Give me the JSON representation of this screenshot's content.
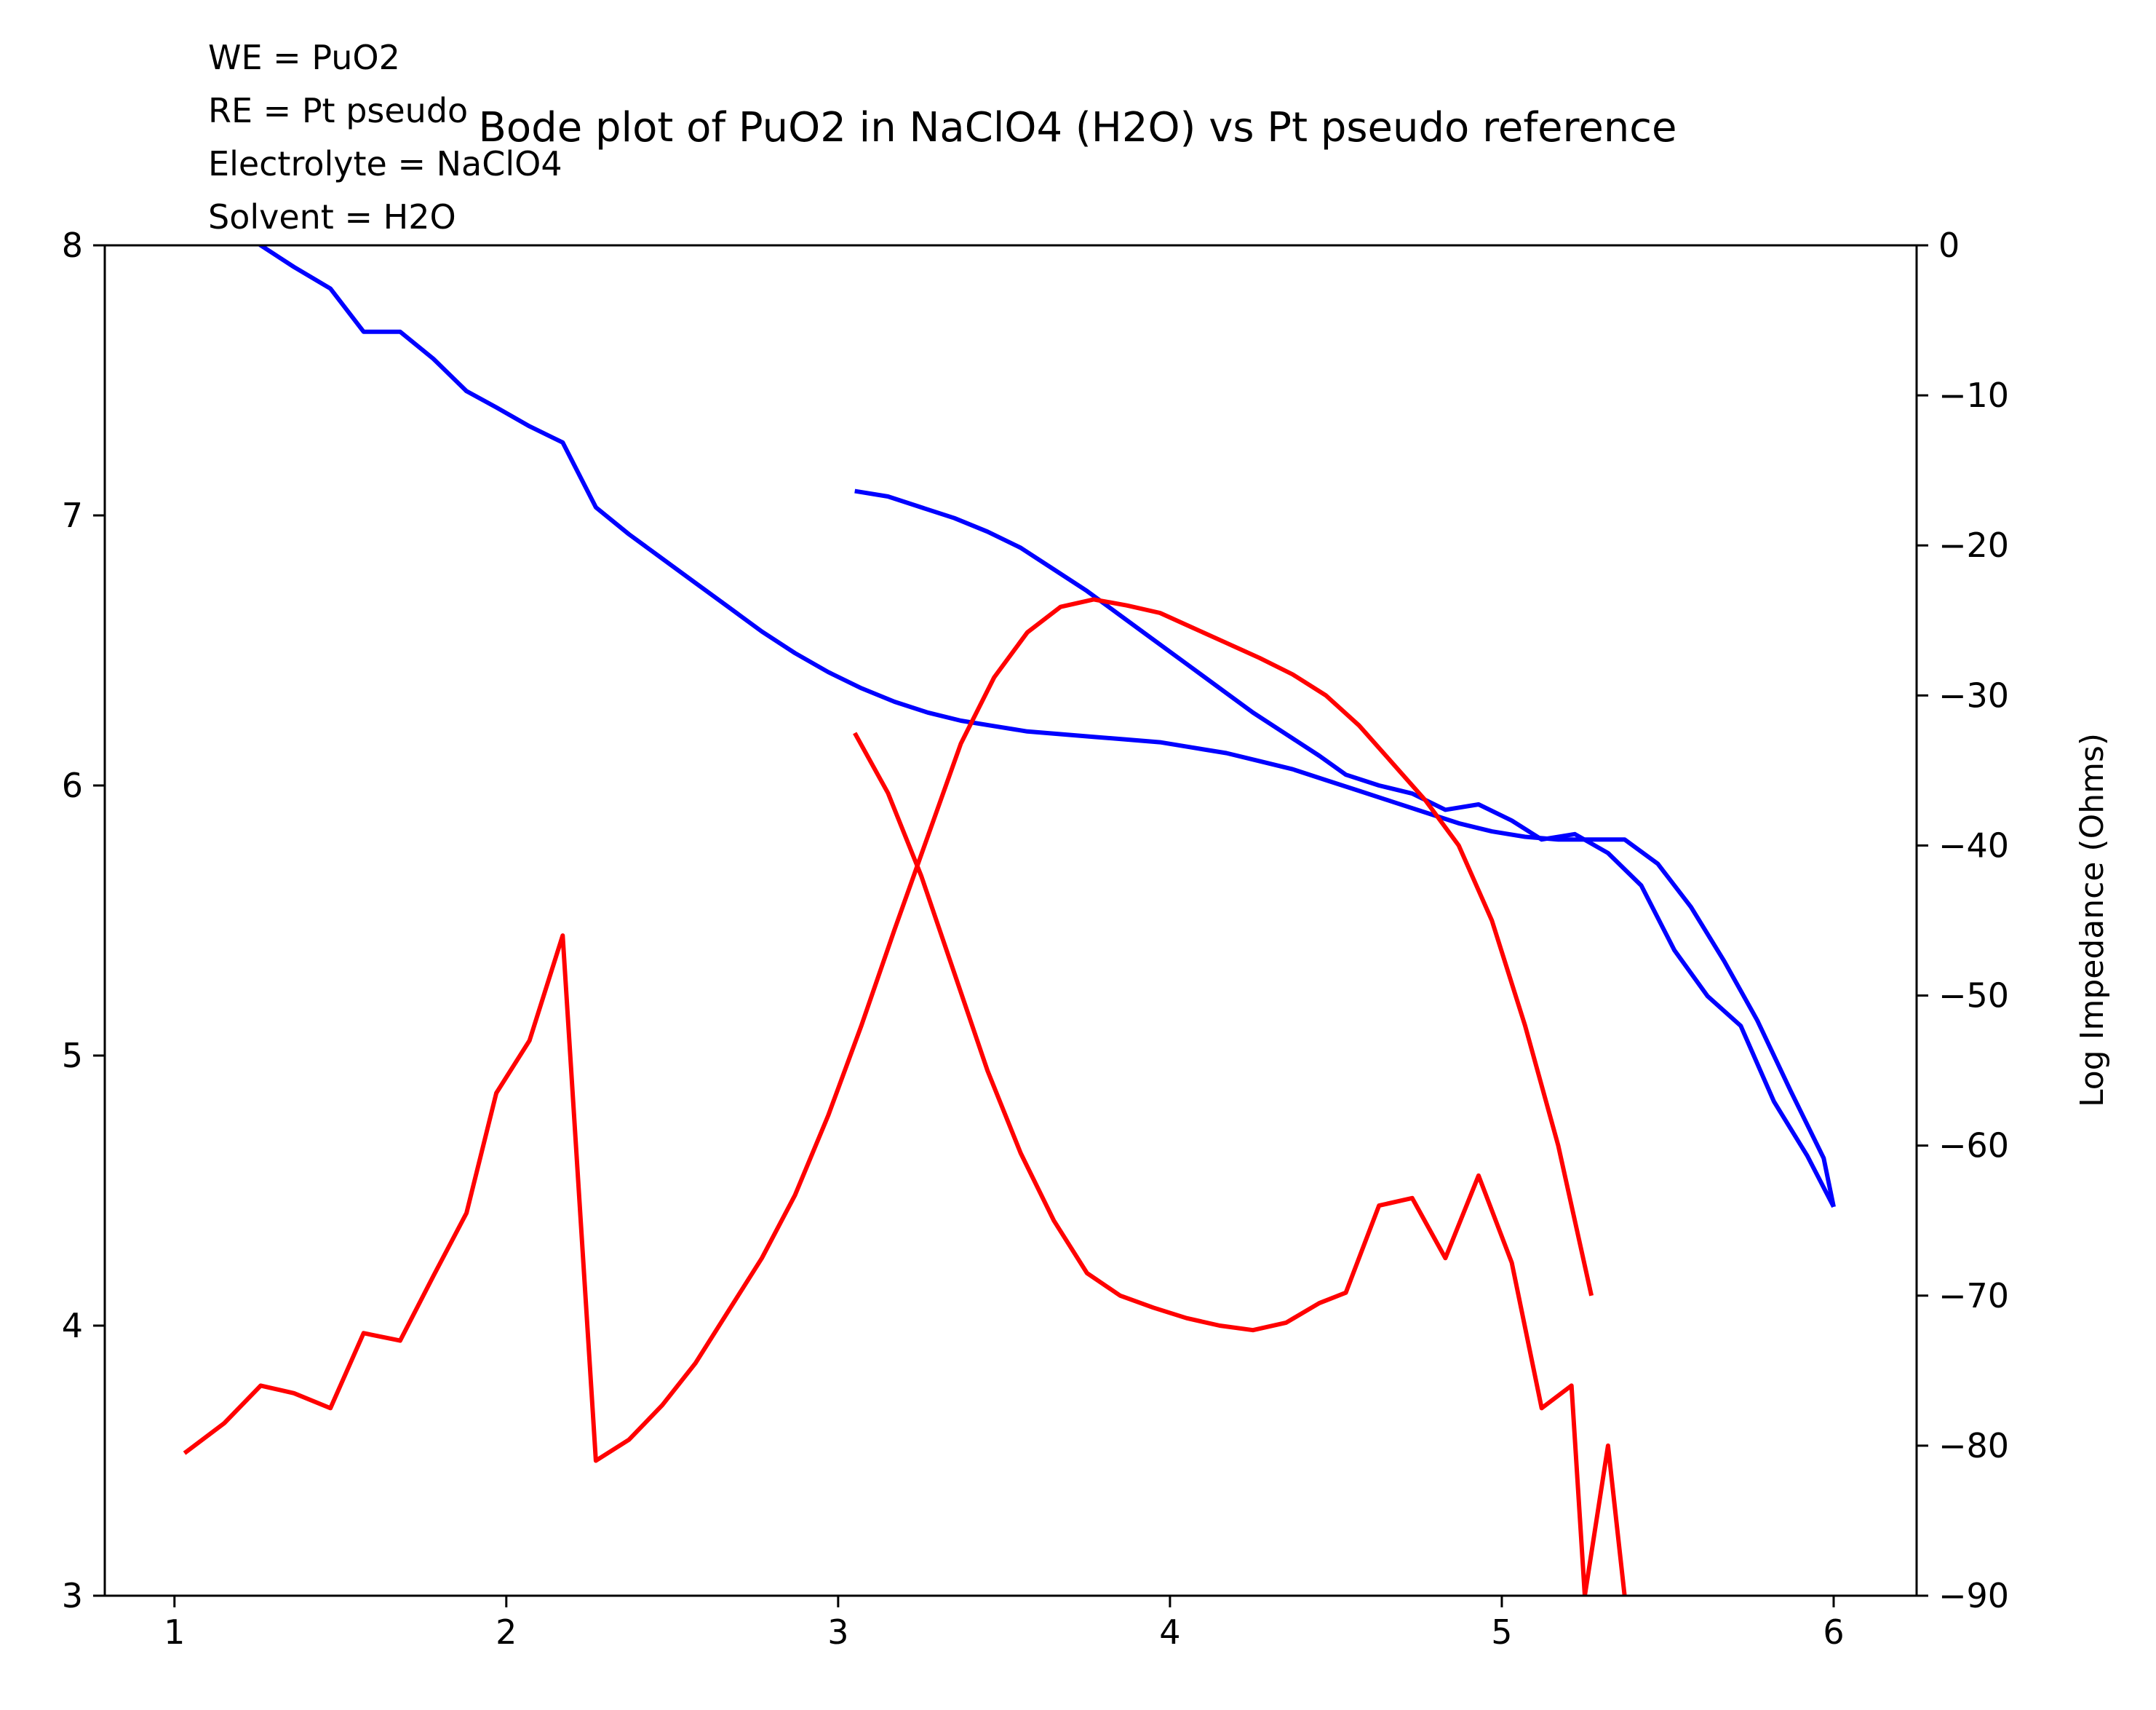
{
  "chart_data": {
    "type": "line",
    "title": "Bode plot of PuO2 in NaClO4 (H2O) vs Pt pseudo reference",
    "annotations": [
      "WE = PuO2",
      "RE = Pt pseudo",
      "Electrolyte = NaClO4",
      "Solvent = H2O"
    ],
    "xlabel": "",
    "ylabel_left": "",
    "ylabel_right": "Log Impedance (Ohms)",
    "xlim": [
      0.79,
      6.25
    ],
    "ylim_left": [
      3,
      8
    ],
    "ylim_right": [
      -90,
      0
    ],
    "xticks": [
      1,
      2,
      3,
      4,
      5,
      6
    ],
    "yticks_left": [
      3,
      4,
      5,
      6,
      7,
      8
    ],
    "yticks_right": [
      0,
      -10,
      -20,
      -30,
      -40,
      -50,
      -60,
      -70,
      -80,
      -90
    ],
    "grid": false,
    "series": [
      {
        "color": "#0000ff",
        "axis": "left",
        "x": [
          1.03,
          1.15,
          1.26,
          1.36,
          1.47,
          1.57,
          1.68,
          1.78,
          1.88,
          1.97,
          2.07,
          2.17,
          2.27,
          2.37,
          2.47,
          2.57,
          2.67,
          2.77,
          2.87,
          2.97,
          3.07,
          3.17,
          3.27,
          3.37,
          3.47,
          3.57,
          3.67,
          3.77,
          3.87,
          3.97,
          4.07,
          4.17,
          4.27,
          4.37,
          4.47,
          4.57,
          4.67,
          4.77,
          4.87,
          4.97,
          5.07,
          5.17,
          5.27,
          5.37,
          5.47,
          5.57,
          5.67,
          5.77,
          5.87,
          5.97,
          6.0
        ],
        "y": [
          8.22,
          8.11,
          8.0,
          7.92,
          7.84,
          7.68,
          7.68,
          7.58,
          7.46,
          7.4,
          7.33,
          7.27,
          7.03,
          6.93,
          6.84,
          6.75,
          6.66,
          6.57,
          6.49,
          6.42,
          6.36,
          6.31,
          6.27,
          6.24,
          6.22,
          6.2,
          6.19,
          6.18,
          6.17,
          6.16,
          6.14,
          6.12,
          6.09,
          6.06,
          6.02,
          5.98,
          5.94,
          5.9,
          5.86,
          5.83,
          5.81,
          5.8,
          5.8,
          5.8,
          5.71,
          5.55,
          5.35,
          5.13,
          4.87,
          4.62,
          4.44
        ]
      },
      {
        "color": "#0000ff",
        "axis": "left",
        "x": [
          3.05,
          3.15,
          3.25,
          3.35,
          3.45,
          3.55,
          3.65,
          3.75,
          3.85,
          3.95,
          4.05,
          4.15,
          4.25,
          4.35,
          4.45,
          4.53,
          4.63,
          4.73,
          4.83,
          4.93,
          5.03,
          5.12,
          5.22,
          5.32,
          5.42,
          5.52,
          5.62,
          5.72,
          5.82,
          5.92,
          6.0
        ],
        "y": [
          7.09,
          7.07,
          7.03,
          6.99,
          6.94,
          6.88,
          6.8,
          6.72,
          6.63,
          6.54,
          6.45,
          6.36,
          6.27,
          6.19,
          6.11,
          6.04,
          6.0,
          5.97,
          5.91,
          5.93,
          5.87,
          5.8,
          5.82,
          5.75,
          5.63,
          5.39,
          5.22,
          5.11,
          4.83,
          4.63,
          4.44
        ]
      },
      {
        "color": "#ff0000",
        "axis": "right",
        "x": [
          1.03,
          1.15,
          1.26,
          1.36,
          1.47,
          1.57,
          1.68,
          1.78,
          1.88,
          1.97,
          2.07,
          2.17,
          2.27,
          2.37,
          2.47,
          2.57,
          2.67,
          2.77,
          2.87,
          2.97,
          3.07,
          3.17,
          3.27,
          3.37,
          3.47,
          3.57,
          3.67,
          3.77,
          3.87,
          3.97,
          4.07,
          4.17,
          4.27,
          4.37,
          4.47,
          4.57,
          4.67,
          4.77,
          4.87,
          4.97,
          5.07,
          5.17,
          5.27
        ],
        "y": [
          -80.5,
          -78.5,
          -76.0,
          -76.5,
          -77.5,
          -72.5,
          -73.0,
          -68.7,
          -64.5,
          -56.5,
          -53.0,
          -46.0,
          -81.0,
          -79.6,
          -77.3,
          -74.5,
          -71.0,
          -67.5,
          -63.3,
          -58.0,
          -52.0,
          -45.6,
          -39.4,
          -33.2,
          -28.8,
          -25.8,
          -24.1,
          -23.6,
          -24.0,
          -24.5,
          -25.5,
          -26.5,
          -27.5,
          -28.6,
          -30.0,
          -32.0,
          -34.5,
          -37.0,
          -40.0,
          -45.0,
          -52.0,
          -60.0,
          -70.0
        ]
      },
      {
        "color": "#ff0000",
        "axis": "right",
        "x": [
          3.05,
          3.15,
          3.25,
          3.35,
          3.45,
          3.55,
          3.65,
          3.75,
          3.85,
          3.95,
          4.05,
          4.15,
          4.25,
          4.35,
          4.45,
          4.53,
          4.63,
          4.73,
          4.83,
          4.93,
          5.03,
          5.12,
          5.21,
          5.25,
          5.32,
          5.37
        ],
        "y": [
          -32.5,
          -36.5,
          -42.0,
          -48.5,
          -55.0,
          -60.5,
          -65.0,
          -68.5,
          -70.0,
          -70.8,
          -71.5,
          -72.0,
          -72.3,
          -71.8,
          -70.5,
          -69.8,
          -64.0,
          -63.5,
          -67.5,
          -62.0,
          -67.8,
          -77.5,
          -76.0,
          -90.0,
          -80.0,
          -90.0
        ]
      }
    ]
  }
}
